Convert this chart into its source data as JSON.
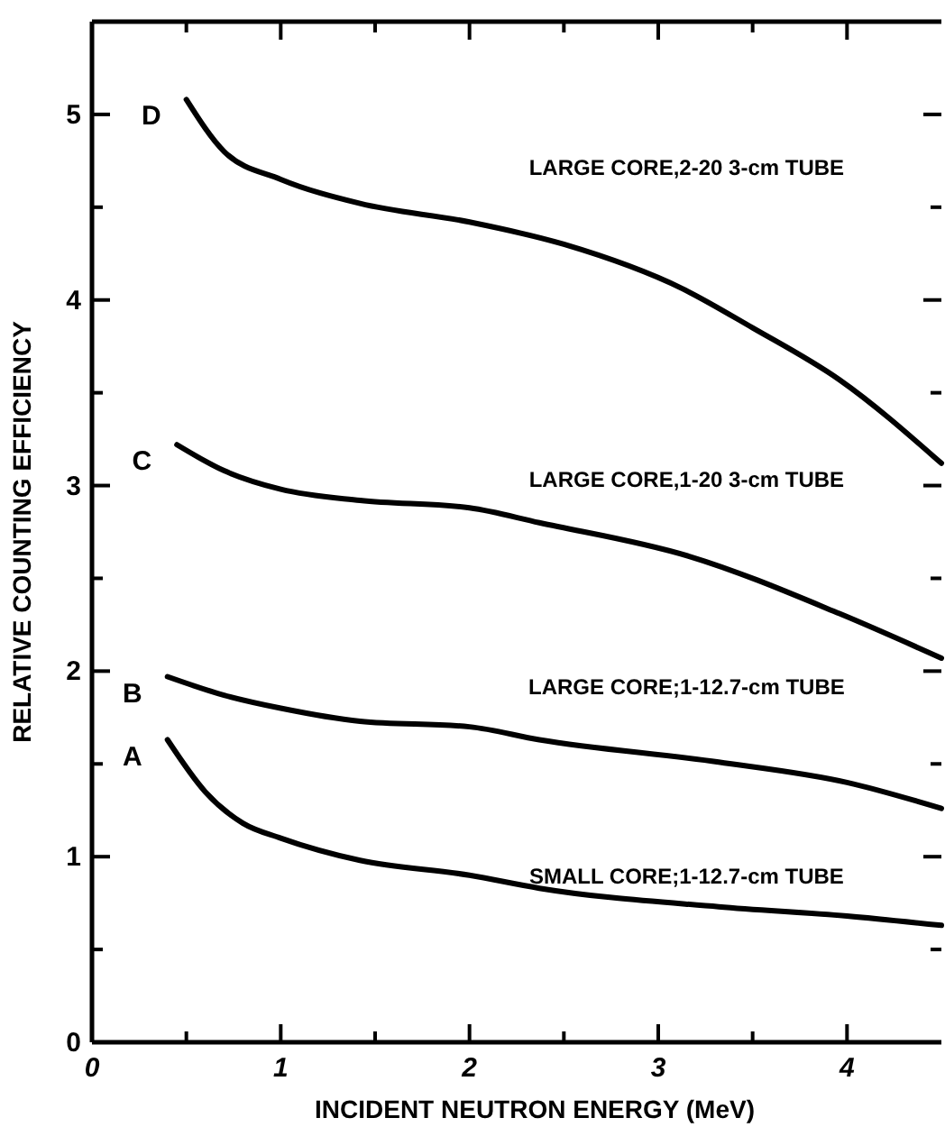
{
  "chart_data": {
    "type": "line",
    "xlabel": "INCIDENT NEUTRON ENERGY (MeV)",
    "ylabel": "RELATIVE COUNTING EFFICIENCY",
    "xlim": [
      0,
      4.5
    ],
    "ylim": [
      0,
      5.5
    ],
    "xticks": [
      0,
      {
        "value": 0.5,
        "label": null
      },
      1,
      {
        "value": 1.5,
        "label": null
      },
      2,
      {
        "value": 2.5,
        "label": null
      },
      3,
      {
        "value": 3.5,
        "label": null
      },
      4
    ],
    "yticks": [
      0,
      {
        "value": 0.5,
        "label": null
      },
      1,
      {
        "value": 1.5,
        "label": null
      },
      2,
      {
        "value": 2.5,
        "label": null
      },
      3,
      {
        "value": 3.5,
        "label": null
      },
      4,
      {
        "value": 4.5,
        "label": null
      },
      5
    ],
    "grid": false,
    "marker": "none",
    "line_style": "solid",
    "series": [
      {
        "name": "D",
        "color": "#000000",
        "x": [
          0.5,
          0.7,
          1.0,
          1.42,
          2.0,
          2.5,
          3.13,
          3.5,
          3.96,
          4.5
        ],
        "values": [
          5.08,
          4.8,
          4.65,
          4.52,
          4.42,
          4.3,
          4.06,
          3.85,
          3.57,
          3.12
        ]
      },
      {
        "name": "C",
        "color": "#000000",
        "x": [
          0.45,
          0.7,
          1.0,
          1.42,
          2.0,
          2.37,
          3.16,
          3.96,
          4.5
        ],
        "values": [
          3.22,
          3.08,
          2.98,
          2.92,
          2.88,
          2.8,
          2.62,
          2.31,
          2.07
        ]
      },
      {
        "name": "B",
        "color": "#000000",
        "x": [
          0.4,
          0.7,
          1.0,
          1.42,
          2.0,
          2.37,
          3.32,
          4.0,
          4.5
        ],
        "values": [
          1.97,
          1.87,
          1.8,
          1.73,
          1.7,
          1.63,
          1.51,
          1.4,
          1.26
        ]
      },
      {
        "name": "A",
        "color": "#000000",
        "x": [
          0.4,
          0.6,
          0.8,
          1.0,
          1.42,
          2.0,
          2.37,
          3.32,
          4.0,
          4.5
        ],
        "values": [
          1.63,
          1.35,
          1.18,
          1.1,
          0.98,
          0.9,
          0.83,
          0.73,
          0.68,
          0.63
        ]
      }
    ],
    "annotations": [
      "LARGE CORE,2-20 3-cm TUBE",
      "LARGE CORE,1-20 3-cm TUBE",
      "LARGE CORE;1-12.7-cm TUBE",
      "SMALL CORE;1-12.7-cm TUBE"
    ]
  }
}
